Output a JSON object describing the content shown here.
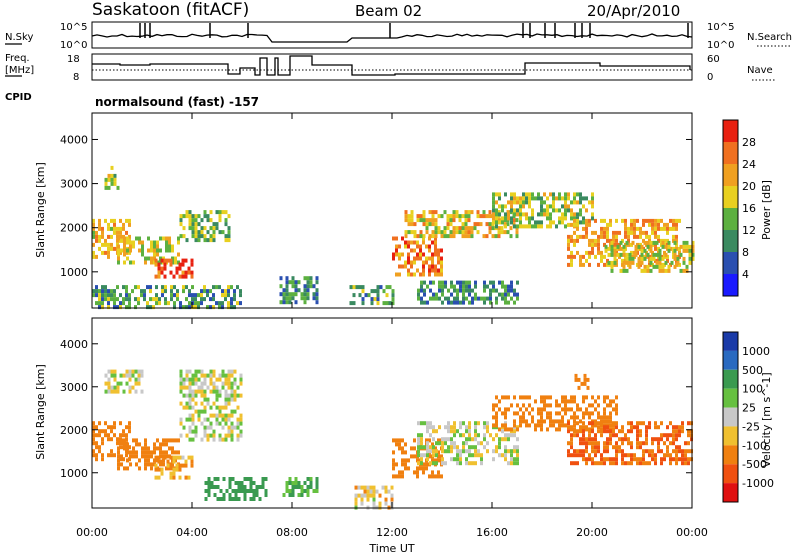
{
  "header": {
    "station": "Saskatoon (fitACF)",
    "beam": "Beam 02",
    "date": "20/Apr/2010"
  },
  "summary": {
    "nsky_label": "N.Sky",
    "nsearch_label": "N.Search",
    "nsky_ticks": [
      "10^5",
      "10^0"
    ],
    "nsearch_ticks": [
      "10^5",
      "10^0"
    ],
    "freq_label_1": "Freq.",
    "freq_label_2": "[MHz]",
    "freq_ticks": [
      "18",
      "8"
    ],
    "nave_label": "Nave",
    "nave_ticks": [
      "60",
      "0"
    ],
    "cpid_label": "CPID",
    "cpid_text": "normalsound (fast) -157"
  },
  "axes": {
    "ylabel": "Slant Range [km]",
    "yticks": [
      "1000",
      "2000",
      "3000",
      "4000"
    ],
    "xticks": [
      "00:00",
      "04:00",
      "08:00",
      "12:00",
      "16:00",
      "20:00",
      "00:00"
    ],
    "xlabel": "Time UT"
  },
  "power_scale": {
    "label": "Power [dB]",
    "ticks": [
      "4",
      "8",
      "12",
      "16",
      "20",
      "24",
      "28"
    ],
    "colors": [
      "#1a1aff",
      "#2a4fb0",
      "#3a8a60",
      "#5cb040",
      "#e8d020",
      "#f0a020",
      "#f07020",
      "#e82010"
    ]
  },
  "velocity_scale": {
    "label": "Velocity [m s^-1]",
    "ticks": [
      "1000",
      "500",
      "100",
      "25",
      "-25",
      "-100",
      "-500",
      "-1000"
    ],
    "colors": [
      "#1a3aa8",
      "#2a6ac0",
      "#3a9a50",
      "#66c040",
      "#c8c8c8",
      "#f0c030",
      "#f08010",
      "#f05010",
      "#e01010"
    ]
  },
  "chart_data": [
    {
      "type": "heatmap",
      "name": "Power",
      "x_range_hours": [
        0,
        24
      ],
      "y_range_km": [
        180,
        4600
      ],
      "regions": [
        {
          "t": [
            0.0,
            1.5
          ],
          "r": [
            1300,
            2200
          ],
          "v": 20
        },
        {
          "t": [
            1.0,
            3.5
          ],
          "r": [
            1200,
            1800
          ],
          "v": 18
        },
        {
          "t": [
            2.5,
            4.0
          ],
          "r": [
            900,
            1300
          ],
          "v": 28
        },
        {
          "t": [
            3.5,
            5.5
          ],
          "r": [
            1700,
            2400
          ],
          "v": 14
        },
        {
          "t": [
            0.5,
            1.0
          ],
          "r": [
            2900,
            3400
          ],
          "v": 16
        },
        {
          "t": [
            0.0,
            6.0
          ],
          "r": [
            200,
            700
          ],
          "v": 12
        },
        {
          "t": [
            7.5,
            9.0
          ],
          "r": [
            300,
            900
          ],
          "v": 10
        },
        {
          "t": [
            10.3,
            12.0
          ],
          "r": [
            300,
            700
          ],
          "v": 12
        },
        {
          "t": [
            12.0,
            14.0
          ],
          "r": [
            900,
            1800
          ],
          "v": 24
        },
        {
          "t": [
            12.5,
            17.0
          ],
          "r": [
            1800,
            2400
          ],
          "v": 20
        },
        {
          "t": [
            13.0,
            17.0
          ],
          "r": [
            300,
            800
          ],
          "v": 10
        },
        {
          "t": [
            16.0,
            20.0
          ],
          "r": [
            2000,
            2800
          ],
          "v": 16
        },
        {
          "t": [
            19.0,
            23.5
          ],
          "r": [
            1200,
            2200
          ],
          "v": 22
        },
        {
          "t": [
            20.5,
            24.0
          ],
          "r": [
            1000,
            1700
          ],
          "v": 18
        }
      ]
    },
    {
      "type": "heatmap",
      "name": "Velocity",
      "x_range_hours": [
        0,
        24
      ],
      "y_range_km": [
        180,
        4600
      ],
      "regions": [
        {
          "t": [
            0.0,
            1.5
          ],
          "r": [
            1300,
            2200
          ],
          "v": -300
        },
        {
          "t": [
            1.0,
            3.5
          ],
          "r": [
            1100,
            1800
          ],
          "v": -200
        },
        {
          "t": [
            2.5,
            4.0
          ],
          "r": [
            900,
            1400
          ],
          "v": -100
        },
        {
          "t": [
            3.5,
            6.0
          ],
          "r": [
            1800,
            3400
          ],
          "v": 0
        },
        {
          "t": [
            0.5,
            2.0
          ],
          "r": [
            2900,
            3400
          ],
          "v": 0
        },
        {
          "t": [
            4.5,
            7.0
          ],
          "r": [
            400,
            900
          ],
          "v": 200
        },
        {
          "t": [
            7.5,
            9.0
          ],
          "r": [
            500,
            900
          ],
          "v": 100
        },
        {
          "t": [
            10.5,
            12.0
          ],
          "r": [
            200,
            700
          ],
          "v": -50
        },
        {
          "t": [
            12.0,
            14.0
          ],
          "r": [
            900,
            1800
          ],
          "v": -300
        },
        {
          "t": [
            13.0,
            17.0
          ],
          "r": [
            1200,
            2200
          ],
          "v": 0
        },
        {
          "t": [
            16.0,
            21.0
          ],
          "r": [
            2000,
            2800
          ],
          "v": -400
        },
        {
          "t": [
            19.0,
            24.0
          ],
          "r": [
            1200,
            2200
          ],
          "v": -500
        },
        {
          "t": [
            19.3,
            19.8
          ],
          "r": [
            3000,
            3300
          ],
          "v": -400
        }
      ]
    }
  ]
}
